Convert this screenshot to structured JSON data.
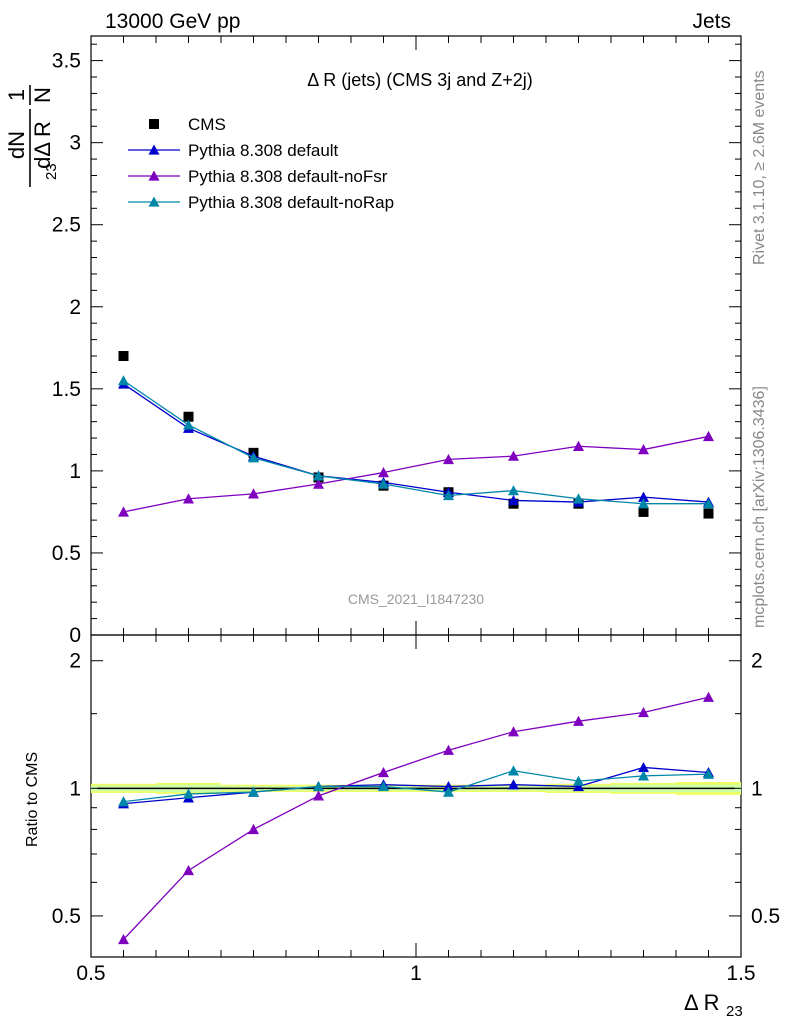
{
  "header": {
    "left": "13000 GeV pp",
    "right": "Jets"
  },
  "side_labels": {
    "rivet": "Rivet 3.1.10, ≥ 2.6M events",
    "mcplots": "mcplots.cern.ch [arXiv:1306.3436]"
  },
  "watermark": "CMS_2021_I1847230",
  "colors": {
    "CMS": "#000000",
    "default": "#0000cc",
    "noFsr": "#7f00bf",
    "noRap": "#0087a8",
    "band_outer": "#eeff66",
    "band_inner": "#ccffaa"
  },
  "chart_data": [
    {
      "type": "scatter",
      "title": "Δ R (jets) (CMS 3j and Z+2j)",
      "ylabel": "1/N dN/dΔ R23",
      "xlabel": "Δ R23",
      "xlim": [
        0.5,
        1.5
      ],
      "ylim": [
        0,
        3.65
      ],
      "yticks": [
        0,
        0.5,
        1,
        1.5,
        2,
        2.5,
        3,
        3.5
      ],
      "legend_placement": "top-left",
      "x": [
        0.55,
        0.65,
        0.75,
        0.85,
        0.95,
        1.05,
        1.15,
        1.25,
        1.35,
        1.45
      ],
      "series": [
        {
          "name": "CMS",
          "marker": "square",
          "line": false,
          "values": [
            1.7,
            1.33,
            1.11,
            0.96,
            0.91,
            0.87,
            0.8,
            0.8,
            0.75,
            0.74
          ]
        },
        {
          "name": "Pythia 8.308 default",
          "marker": "triangle",
          "line": true,
          "values": [
            1.53,
            1.26,
            1.09,
            0.97,
            0.93,
            0.87,
            0.82,
            0.81,
            0.84,
            0.81
          ]
        },
        {
          "name": "Pythia 8.308 default-noFsr",
          "marker": "triangle",
          "line": true,
          "values": [
            0.75,
            0.83,
            0.86,
            0.92,
            0.99,
            1.07,
            1.09,
            1.15,
            1.13,
            1.21
          ]
        },
        {
          "name": "Pythia 8.308 default-noRap",
          "marker": "triangle",
          "line": true,
          "values": [
            1.55,
            1.28,
            1.08,
            0.97,
            0.92,
            0.85,
            0.88,
            0.83,
            0.8,
            0.8
          ]
        }
      ]
    },
    {
      "type": "line",
      "ylabel": "Ratio to CMS",
      "xlabel": "Δ R23",
      "xlim": [
        0.5,
        1.5
      ],
      "ylim": [
        0.4,
        2.3
      ],
      "yticks": [
        0.5,
        1,
        2
      ],
      "xticks": [
        0.5,
        1,
        1.5
      ],
      "x": [
        0.55,
        0.65,
        0.75,
        0.85,
        0.95,
        1.05,
        1.15,
        1.25,
        1.35,
        1.45
      ],
      "series": [
        {
          "name": "Pythia 8.308 default",
          "values": [
            0.92,
            0.95,
            0.98,
            1.01,
            1.02,
            1.01,
            1.02,
            1.01,
            1.12,
            1.09
          ]
        },
        {
          "name": "Pythia 8.308 default-noFsr",
          "values": [
            0.44,
            0.64,
            0.8,
            0.96,
            1.09,
            1.23,
            1.36,
            1.44,
            1.51,
            1.64
          ]
        },
        {
          "name": "Pythia 8.308 default-noRap",
          "values": [
            0.93,
            0.97,
            0.98,
            1.01,
            1.01,
            0.98,
            1.1,
            1.04,
            1.07,
            1.08
          ]
        }
      ],
      "uncertainty": {
        "outer": [
          0.025,
          0.03,
          0.02,
          0.02,
          0.02,
          0.02,
          0.02,
          0.025,
          0.03,
          0.035
        ],
        "inner": [
          0.015,
          0.02,
          0.012,
          0.012,
          0.012,
          0.012,
          0.012,
          0.015,
          0.02,
          0.02
        ]
      }
    }
  ]
}
